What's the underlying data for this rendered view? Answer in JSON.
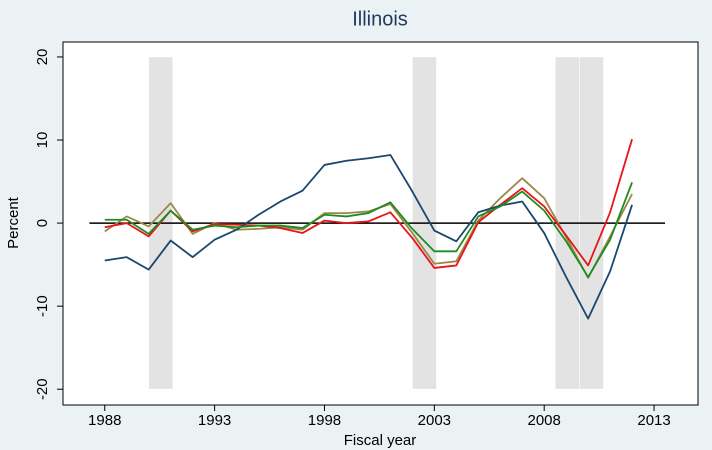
{
  "chart_data": {
    "type": "line",
    "title": "Illinois",
    "x_label": "Fiscal year",
    "y_label": "Percent",
    "xlim": [
      1986.1,
      2015
    ],
    "ylim": [
      -21.9,
      21.8
    ],
    "xticks": [
      1988,
      1993,
      1998,
      2003,
      2008,
      2013
    ],
    "yticks": [
      -20,
      -10,
      0,
      10,
      20
    ],
    "shaded_periods": [
      [
        1990,
        1991.1
      ],
      [
        2002,
        2003.1
      ],
      [
        2008.5,
        2009.6
      ],
      [
        2009.6,
        2010.7
      ]
    ],
    "shade_range": [
      -20,
      20
    ],
    "shade_color": "#e3e3e3",
    "reference_line": {
      "y": 0,
      "x": [
        1987.3,
        2013.5
      ],
      "color": "#000000"
    },
    "x": [
      1988,
      1989,
      1990,
      1991,
      1992,
      1993,
      1994,
      1995,
      1996,
      1997,
      1998,
      1999,
      2000,
      2001,
      2002,
      2003,
      2004,
      2005,
      2006,
      2007,
      2008,
      2009,
      2010,
      2011,
      2012
    ],
    "series": [
      {
        "color": "#9c8847",
        "values": [
          -1.0,
          0.8,
          -0.4,
          2.4,
          -1.3,
          0.0,
          -0.8,
          -0.7,
          -0.5,
          -0.8,
          1.2,
          1.2,
          1.4,
          2.3,
          -1.2,
          -4.9,
          -4.6,
          0.3,
          3.0,
          5.4,
          3.0,
          -1.7,
          -6.6,
          -1.6,
          3.5
        ]
      },
      {
        "color": "#e8141a",
        "values": [
          -0.5,
          0.0,
          -1.6,
          1.5,
          -1.0,
          -0.1,
          -0.2,
          -0.3,
          -0.6,
          -1.2,
          0.3,
          0.0,
          0.2,
          1.3,
          -1.8,
          -5.4,
          -5.1,
          0.1,
          2.2,
          4.2,
          2.0,
          -1.5,
          -5.1,
          1.3,
          10.1
        ]
      },
      {
        "color": "#1a476f",
        "values": [
          -4.5,
          -4.1,
          -5.6,
          -2.1,
          -4.1,
          -2.0,
          -0.8,
          1.0,
          2.6,
          3.9,
          7.0,
          7.5,
          7.8,
          8.2,
          3.8,
          -0.9,
          -2.2,
          1.3,
          2.1,
          2.6,
          -1.2,
          -6.5,
          -11.5,
          -5.8,
          2.2
        ]
      },
      {
        "color": "#1e8c1e",
        "values": [
          0.4,
          0.4,
          -1.3,
          1.5,
          -0.8,
          -0.3,
          -0.5,
          -0.3,
          -0.3,
          -0.6,
          1.0,
          0.8,
          1.2,
          2.5,
          -0.7,
          -3.4,
          -3.4,
          0.8,
          2.0,
          3.8,
          1.5,
          -2.2,
          -6.5,
          -2.0,
          4.9
        ]
      }
    ]
  }
}
